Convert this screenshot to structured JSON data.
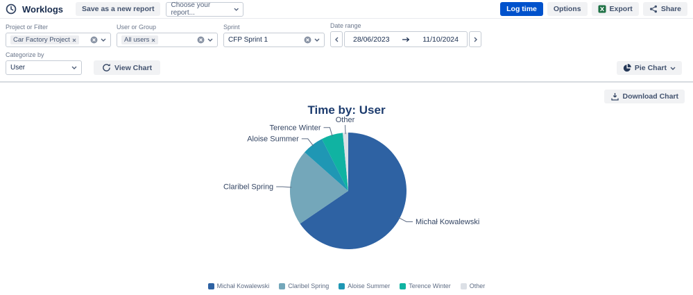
{
  "topbar": {
    "app_title": "Worklogs",
    "save_report_button": "Save as a new report",
    "report_select_placeholder": "Choose your report...",
    "log_time_button": "Log time",
    "options_button": "Options",
    "export_button": "Export",
    "share_button": "Share"
  },
  "filters": {
    "project": {
      "label": "Project or Filter",
      "value": "Car Factory Project"
    },
    "user_group": {
      "label": "User or Group",
      "value": "All users"
    },
    "sprint": {
      "label": "Sprint",
      "value": "CFP Sprint 1"
    },
    "date_range": {
      "label": "Date range",
      "start_date": "28/06/2023",
      "end_date": "11/10/2024"
    }
  },
  "toolbar": {
    "categorize_by_label": "Categorize by",
    "categorize_by_value": "User",
    "view_chart_button": "View Chart",
    "chart_type_button": "Pie Chart",
    "download_chart_button": "Download Chart"
  },
  "chart_data": {
    "type": "pie",
    "title": "Time by: User",
    "categories": [
      "Michał Kowalewski",
      "Claribel Spring",
      "Aloise Summer",
      "Terence Winter",
      "Other"
    ],
    "values_percent": [
      65.5,
      21,
      6,
      6,
      1.5
    ],
    "colors": [
      "#2e62a3",
      "#74a7ba",
      "#1f97b4",
      "#10b3a2",
      "#dce0e6"
    ],
    "legend_position": "bottom",
    "labels_shown": true
  }
}
